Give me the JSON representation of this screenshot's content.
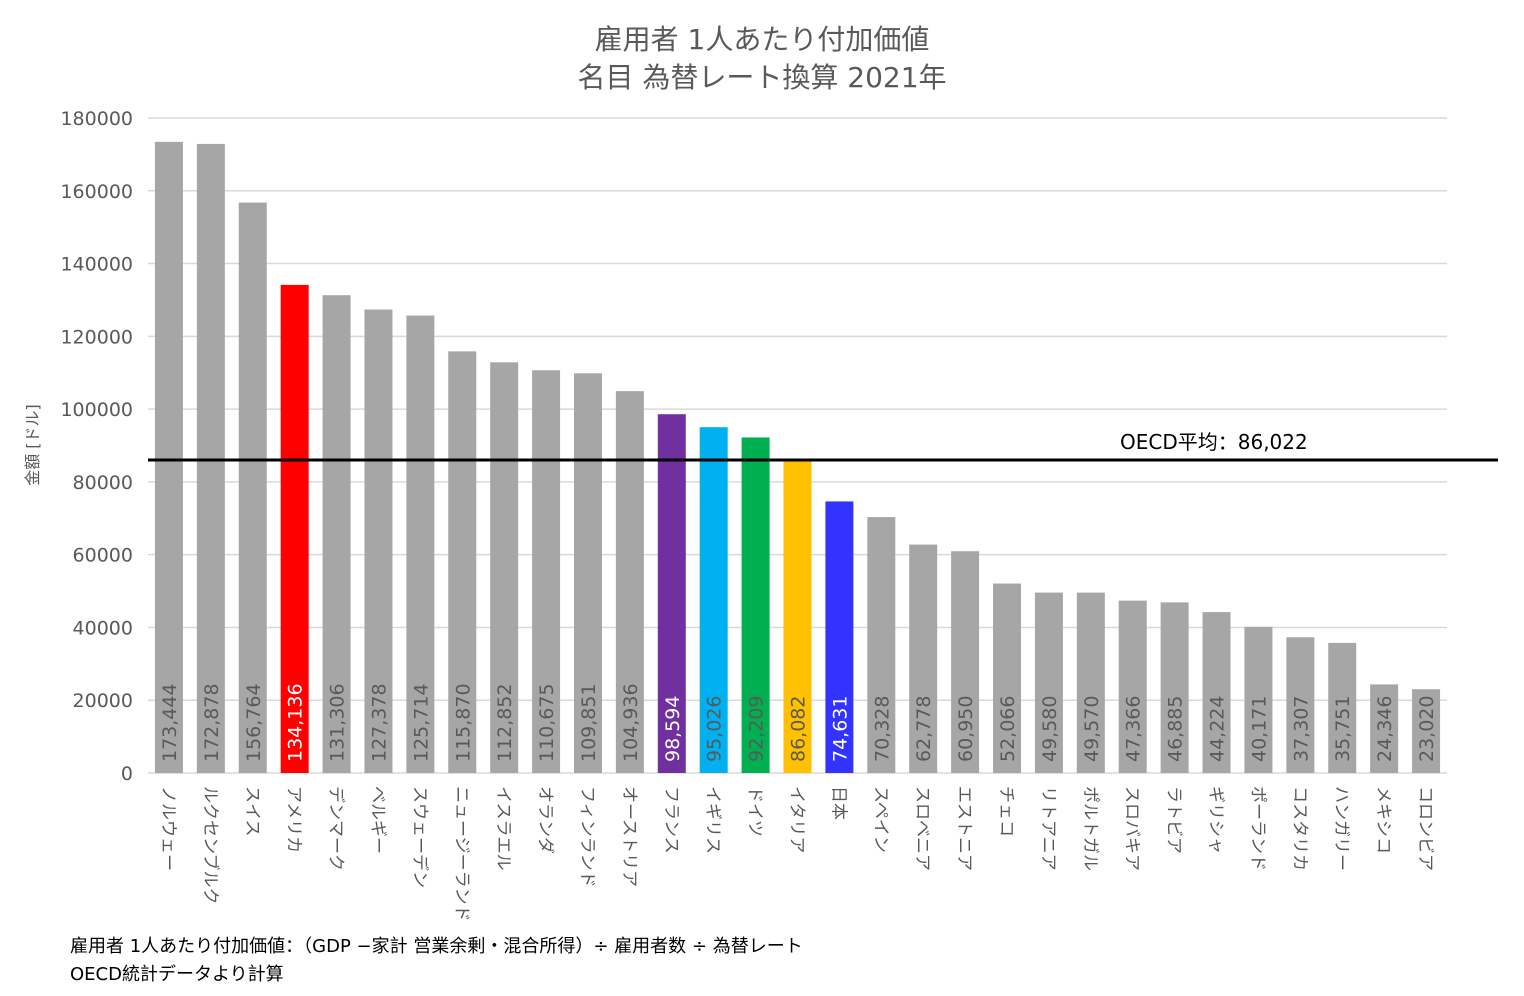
{
  "chart_data": {
    "type": "bar",
    "title": "雇用者 1人あたり付加価値",
    "subtitle": "名目 為替レート換算 2021年",
    "ylabel": "金額 [ドル]",
    "xlabel": "",
    "ylim": [
      0,
      180000
    ],
    "yticks": [
      "0",
      "20000",
      "40000",
      "60000",
      "80000",
      "100000",
      "120000",
      "140000",
      "160000",
      "180000"
    ],
    "grid": true,
    "categories": [
      "ノルウェー",
      "ルクセンブルク",
      "スイス",
      "アメリカ",
      "デンマーク",
      "ベルギー",
      "スウェーデン",
      "ニュージーランド",
      "イスラエル",
      "オランダ",
      "フィンランド",
      "オーストリア",
      "フランス",
      "イギリス",
      "ドイツ",
      "イタリア",
      "日本",
      "スペイン",
      "スロベニア",
      "エストニア",
      "チェコ",
      "リトアニア",
      "ポルトガル",
      "スロバキア",
      "ラトビア",
      "ギリシャ",
      "ポーランド",
      "コスタリカ",
      "ハンガリー",
      "メキシコ",
      "コロンビア"
    ],
    "values": [
      173444,
      172878,
      156764,
      134136,
      131306,
      127378,
      125714,
      115870,
      112852,
      110675,
      109851,
      104936,
      98594,
      95026,
      92209,
      86082,
      74631,
      70328,
      62778,
      60950,
      52066,
      49580,
      49570,
      47366,
      46885,
      44224,
      40171,
      37307,
      35751,
      24346,
      23020
    ],
    "value_labels": [
      "173,444",
      "172,878",
      "156,764",
      "134,136",
      "131,306",
      "127,378",
      "125,714",
      "115,870",
      "112,852",
      "110,675",
      "109,851",
      "104,936",
      "98,594",
      "95,026",
      "92,209",
      "86,082",
      "74,631",
      "70,328",
      "62,778",
      "60,950",
      "52,066",
      "49,580",
      "49,570",
      "47,366",
      "46,885",
      "44,224",
      "40,171",
      "37,307",
      "35,751",
      "24,346",
      "23,020"
    ],
    "colors": [
      "#a6a6a6",
      "#a6a6a6",
      "#a6a6a6",
      "#ff0000",
      "#a6a6a6",
      "#a6a6a6",
      "#a6a6a6",
      "#a6a6a6",
      "#a6a6a6",
      "#a6a6a6",
      "#a6a6a6",
      "#a6a6a6",
      "#7030a0",
      "#00b0f0",
      "#00b050",
      "#ffc000",
      "#3333ff",
      "#a6a6a6",
      "#a6a6a6",
      "#a6a6a6",
      "#a6a6a6",
      "#a6a6a6",
      "#a6a6a6",
      "#a6a6a6",
      "#a6a6a6",
      "#a6a6a6",
      "#a6a6a6",
      "#a6a6a6",
      "#a6a6a6",
      "#a6a6a6",
      "#a6a6a6"
    ],
    "label_colors": [
      "#595959",
      "#595959",
      "#595959",
      "#ffffff",
      "#595959",
      "#595959",
      "#595959",
      "#595959",
      "#595959",
      "#595959",
      "#595959",
      "#595959",
      "#ffffff",
      "#595959",
      "#595959",
      "#595959",
      "#ffffff",
      "#595959",
      "#595959",
      "#595959",
      "#595959",
      "#595959",
      "#595959",
      "#595959",
      "#595959",
      "#595959",
      "#595959",
      "#595959",
      "#595959",
      "#595959",
      "#595959"
    ],
    "reference_line": {
      "value": 86022,
      "label": "OECD平均：86,022",
      "color": "#000000"
    }
  },
  "notes": {
    "line1": "雇用者 1人あたり付加価値：（GDP −家計 営業余剰・混合所得）÷ 雇用者数 ÷ 為替レート",
    "line2": "OECD統計データより計算"
  }
}
